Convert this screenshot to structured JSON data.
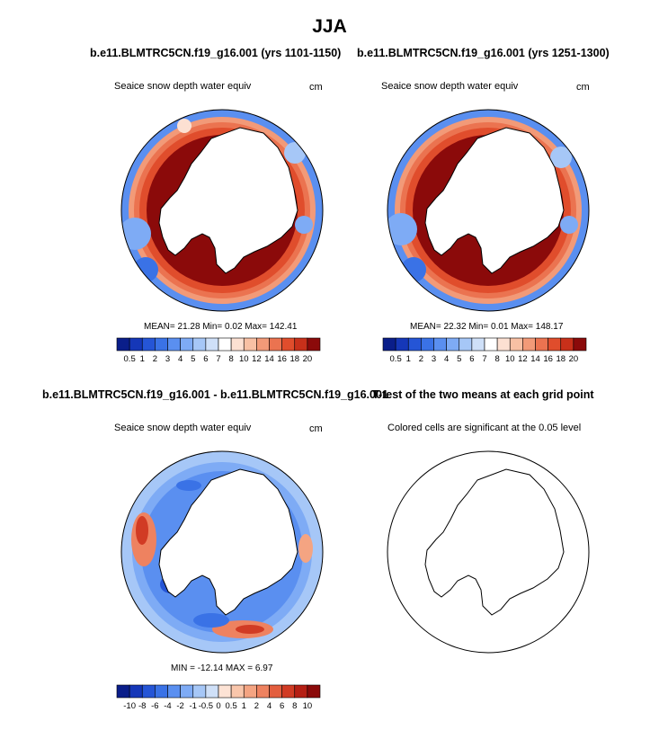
{
  "page": {
    "title": "JJA",
    "top_left_title": "b.e11.BLMTRC5CN.f19_g16.001 (yrs 1101-1150)",
    "top_right_title": "b.e11.BLMTRC5CN.f19_g16.001 (yrs 1251-1300)",
    "bottom_left_title": "b.e11.BLMTRC5CN.f19_g16.001 - b.e11.BLMTRC5CN.f19_g16.001",
    "bottom_right_title": "T-test of the two means at each grid point"
  },
  "panels": {
    "p1": {
      "variable": "Seaice snow depth water equiv",
      "units": "cm",
      "stats": "MEAN=  21.28  Min=   0.02  Max= 142.41"
    },
    "p2": {
      "variable": "Seaice snow depth water equiv",
      "units": "cm",
      "stats": "MEAN=  22.32  Min=   0.01  Max= 148.17"
    },
    "p3": {
      "variable": "Seaice snow depth water equiv",
      "units": "cm",
      "stats": "MIN = -12.14 MAX =   6.97"
    },
    "p4": {
      "caption": "Colored cells are significant at the 0.05 level"
    }
  },
  "colorbars": {
    "abs": {
      "labels": [
        "0.5",
        "1",
        "2",
        "3",
        "4",
        "5",
        "6",
        "7",
        "8",
        "10",
        "12",
        "14",
        "16",
        "18",
        "20"
      ],
      "colors": [
        "#0a1e8a",
        "#1537b8",
        "#2555d6",
        "#3a72e6",
        "#5a8ff0",
        "#7eabf5",
        "#a6c7f7",
        "#cfe0f8",
        "#ffffff",
        "#fce0d2",
        "#f8c0a4",
        "#f29a78",
        "#eb7350",
        "#e04d2c",
        "#c8301a",
        "#8b0a0a"
      ]
    },
    "diff": {
      "labels": [
        "-10",
        "-8",
        "-6",
        "-4",
        "-2",
        "-1",
        "-0.5",
        "0",
        "0.5",
        "1",
        "2",
        "4",
        "6",
        "8",
        "10"
      ],
      "colors": [
        "#0a1e8a",
        "#1537b8",
        "#2555d6",
        "#3a72e6",
        "#5a8ff0",
        "#7eabf5",
        "#a6c7f7",
        "#cfe0f8",
        "#fde3d5",
        "#f9c6ab",
        "#f4a482",
        "#ee8260",
        "#e35e3e",
        "#d13b24",
        "#b51f14",
        "#8b0a0a"
      ]
    }
  },
  "chart_data": [
    {
      "type": "heatmap",
      "title": "b.e11.BLMTRC5CN.f19_g16.001 (yrs 1101-1150)",
      "variable": "Seaice snow depth water equiv",
      "units": "cm",
      "projection": "south polar stereographic",
      "mean": 21.28,
      "min": 0.02,
      "max": 142.41
    },
    {
      "type": "heatmap",
      "title": "b.e11.BLMTRC5CN.f19_g16.001 (yrs 1251-1300)",
      "variable": "Seaice snow depth water equiv",
      "units": "cm",
      "projection": "south polar stereographic",
      "mean": 22.32,
      "min": 0.01,
      "max": 148.17
    },
    {
      "type": "heatmap",
      "title": "b.e11.BLMTRC5CN.f19_g16.001 - b.e11.BLMTRC5CN.f19_g16.001",
      "variable": "Seaice snow depth water equiv",
      "units": "cm",
      "projection": "south polar stereographic",
      "min": -12.14,
      "max": 6.97
    },
    {
      "type": "heatmap",
      "title": "T-test of the two means at each grid point",
      "caption": "Colored cells are significant at the 0.05 level",
      "projection": "south polar stereographic"
    }
  ]
}
